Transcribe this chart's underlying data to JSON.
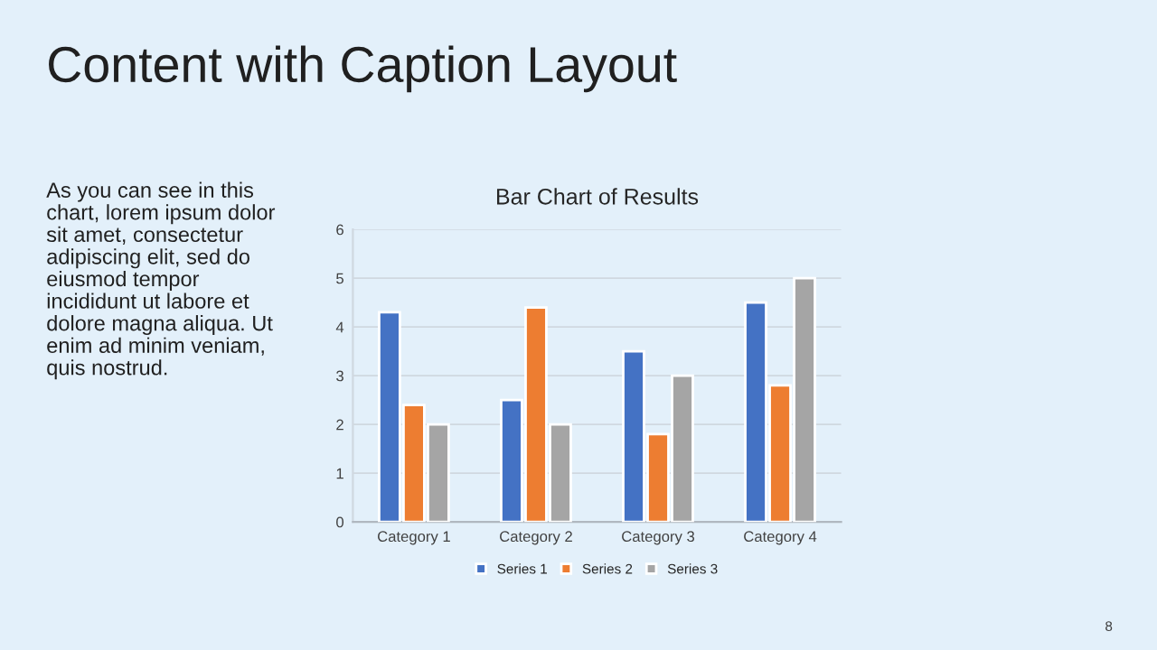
{
  "chart_data": {
    "type": "bar",
    "title": "Bar Chart of Results",
    "categories": [
      "Category 1",
      "Category 2",
      "Category 3",
      "Category 4"
    ],
    "series": [
      {
        "name": "Series 1",
        "color": "#4472c4",
        "values": [
          4.3,
          2.5,
          3.5,
          4.5
        ]
      },
      {
        "name": "Series 2",
        "color": "#ed7d31",
        "values": [
          2.4,
          4.4,
          1.8,
          2.8
        ]
      },
      {
        "name": "Series 3",
        "color": "#a5a5a5",
        "values": [
          2,
          2,
          3,
          5
        ]
      }
    ],
    "ylim": [
      0,
      6
    ],
    "yticks": [
      0,
      1,
      2,
      3,
      4,
      5,
      6
    ],
    "grid": "y",
    "legend": "bottom",
    "annotations": [
      "Content with Caption Layout",
      "As you can see in this\nchart, lorem ipsum dolor\nsit amet, consectetur\nadipiscing elit, sed do\neiusmod tempor\nincididunt ut labore et\ndolore magna aliqua. Ut\nenim ad minim veniam,\nquis nostrud.",
      "8"
    ]
  }
}
